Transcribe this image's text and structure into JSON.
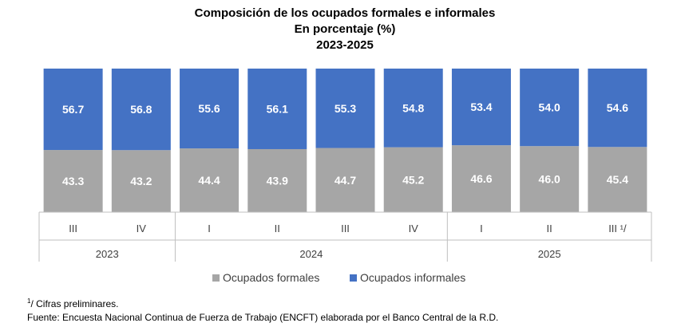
{
  "chart_data": {
    "type": "bar",
    "stacked": true,
    "title": "Composición de los ocupados formales e informales",
    "subtitle": "En porcentaje (%)",
    "period": "2023-2025",
    "categories": [
      "III",
      "IV",
      "I",
      "II",
      "III",
      "IV",
      "I",
      "II",
      "III ¹/"
    ],
    "years": [
      {
        "label": "2023",
        "count": 2
      },
      {
        "label": "2024",
        "count": 4
      },
      {
        "label": "2025",
        "count": 3
      }
    ],
    "series": [
      {
        "name": "Ocupados formales",
        "color": "#a6a6a6",
        "values": [
          43.3,
          43.2,
          44.4,
          43.9,
          44.7,
          45.2,
          46.6,
          46.0,
          45.4
        ],
        "labels": [
          "43.3",
          "43.2",
          "44.4",
          "43.9",
          "44.7",
          "45.2",
          "46.6",
          "46.0",
          "45.4"
        ]
      },
      {
        "name": "Ocupados informales",
        "color": "#4472c4",
        "values": [
          56.7,
          56.8,
          55.6,
          56.1,
          55.3,
          54.8,
          53.4,
          54.0,
          54.6
        ],
        "labels": [
          "56.7",
          "56.8",
          "55.6",
          "56.1",
          "55.3",
          "54.8",
          "53.4",
          "54.0",
          "54.6"
        ]
      }
    ],
    "ylim": [
      0,
      100
    ],
    "grid": false,
    "legend_position": "bottom"
  },
  "notes": {
    "footnote_mark": "1",
    "footnote_text": "/ Cifras preliminares.",
    "source": "Fuente: Encuesta Nacional Continua de Fuerza de Trabajo (ENCFT) elaborada por el Banco Central de la R.D."
  }
}
